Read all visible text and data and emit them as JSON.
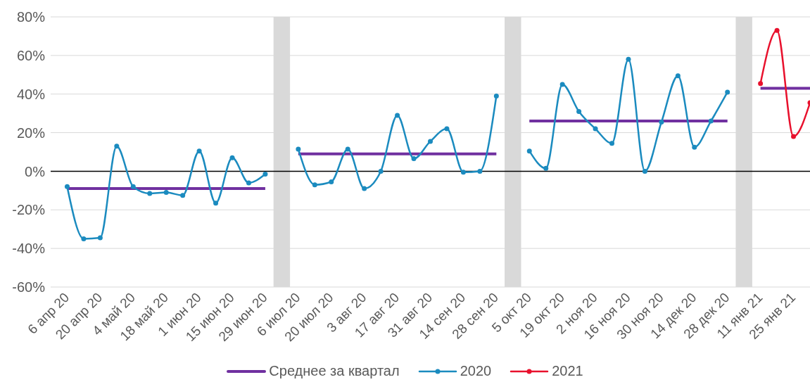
{
  "chart_data": {
    "type": "line",
    "categories": [
      "6 апр 20",
      null,
      "20 апр 20",
      null,
      "4 май 20",
      null,
      "18 май 20",
      null,
      "1 июн 20",
      null,
      "15 июн 20",
      null,
      "29 июн 20",
      null,
      "6 июл 20",
      null,
      "20 июл 20",
      null,
      "3 авг 20",
      null,
      "17 авг 20",
      null,
      "31 авг 20",
      null,
      "14 сен 20",
      null,
      "28 сен 20",
      null,
      "5 окт 20",
      null,
      "19 окт 20",
      null,
      "2 ноя 20",
      null,
      "16 ноя 20",
      null,
      "30 ноя 20",
      null,
      "14 дек 20",
      null,
      "28 дек 20",
      null,
      "11 янв 21",
      null,
      "25 янв 21",
      null
    ],
    "series": [
      {
        "name": "Среднее за квартал",
        "color": "#7030a0",
        "marker": "none",
        "values": [
          -9,
          -9,
          -9,
          -9,
          -9,
          -9,
          -9,
          -9,
          -9,
          -9,
          -9,
          -9,
          -9,
          null,
          9,
          9,
          9,
          9,
          9,
          9,
          9,
          9,
          9,
          9,
          9,
          9,
          9,
          null,
          26,
          26,
          26,
          26,
          26,
          26,
          26,
          26,
          26,
          26,
          26,
          26,
          26,
          null,
          43,
          43,
          43,
          43
        ]
      },
      {
        "name": "2020",
        "color": "#1b8bbf",
        "marker": "circle",
        "values": [
          -8,
          -35,
          -34.5,
          13,
          -8,
          -11.5,
          -11,
          -12.5,
          10.5,
          -16.5,
          7,
          -6,
          -1.5,
          null,
          11.5,
          -7,
          -5.5,
          11.5,
          -9,
          0,
          29,
          6.5,
          15.5,
          22,
          -0.5,
          0,
          39,
          null,
          10.5,
          1.5,
          45,
          31,
          22,
          14.5,
          58,
          0,
          25.5,
          49.5,
          12.5,
          26,
          41,
          null,
          null,
          null,
          null,
          null
        ]
      },
      {
        "name": "2021",
        "color": "#e8112d",
        "marker": "circle",
        "values": [
          null,
          null,
          null,
          null,
          null,
          null,
          null,
          null,
          null,
          null,
          null,
          null,
          null,
          null,
          null,
          null,
          null,
          null,
          null,
          null,
          null,
          null,
          null,
          null,
          null,
          null,
          null,
          null,
          null,
          null,
          null,
          null,
          null,
          null,
          null,
          null,
          null,
          null,
          null,
          null,
          null,
          null,
          45.5,
          73,
          18,
          35.5
        ]
      }
    ],
    "ylim": [
      -60,
      80
    ],
    "yticks": [
      {
        "value": -60,
        "label": "-60%"
      },
      {
        "value": -40,
        "label": "-40%"
      },
      {
        "value": -20,
        "label": "-20%"
      },
      {
        "value": 0,
        "label": "0%"
      },
      {
        "value": 20,
        "label": "20%"
      },
      {
        "value": 40,
        "label": "40%"
      },
      {
        "value": 60,
        "label": "60%"
      },
      {
        "value": 80,
        "label": "80%"
      }
    ],
    "grid": "y",
    "legend": "bottom",
    "line_style": "solid",
    "ref_lines": [
      {
        "axis": "y",
        "value": 0,
        "color": "#000000"
      }
    ],
    "bands": [
      {
        "axis": "x",
        "from": "29 июн 20",
        "to": "6 июл 20",
        "color": "#d9d9d9"
      },
      {
        "axis": "x",
        "from": "28 сен 20",
        "to": "5 окт 20",
        "color": "#d9d9d9"
      },
      {
        "axis": "x",
        "from": "28 дек 20",
        "to": "11 янв 21",
        "color": "#d9d9d9"
      }
    ]
  }
}
